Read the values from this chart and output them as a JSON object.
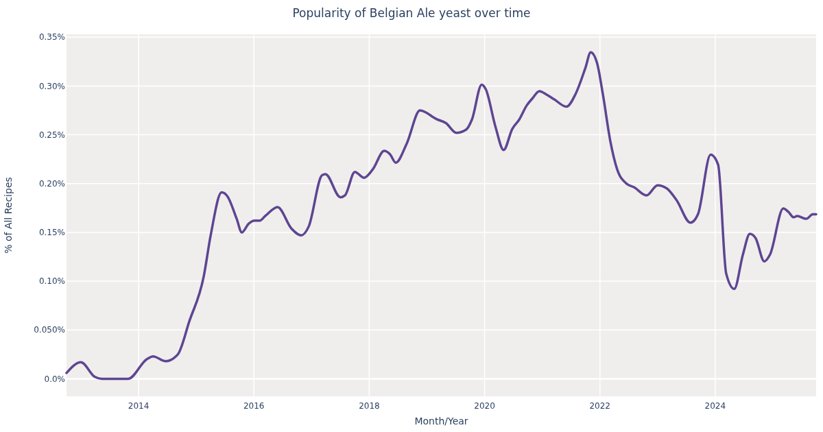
{
  "chart_data": {
    "type": "line",
    "title": "Popularity of Belgian Ale yeast over time",
    "xlabel": "Month/Year",
    "ylabel": "% of All Recipes",
    "xlim": [
      2012.75,
      2025.75
    ],
    "xticks": [
      2014,
      2016,
      2018,
      2020,
      2022,
      2024
    ],
    "ylim": [
      -0.018,
      0.353
    ],
    "yticks": [
      {
        "value": 0,
        "label": "0.0%"
      },
      {
        "value": 0.05,
        "label": "0.050%"
      },
      {
        "value": 0.1,
        "label": "0.10%"
      },
      {
        "value": 0.15,
        "label": "0.15%"
      },
      {
        "value": 0.2,
        "label": "0.20%"
      },
      {
        "value": 0.25,
        "label": "0.25%"
      },
      {
        "value": 0.3,
        "label": "0.30%"
      },
      {
        "value": 0.35,
        "label": "0.35%"
      }
    ],
    "grid": true,
    "line_style": "solid",
    "series": [
      {
        "color": "#5e4592",
        "x": [
          2012.75,
          2013.0,
          2013.24,
          2013.36,
          2013.82,
          2014.14,
          2014.25,
          2014.47,
          2014.68,
          2014.88,
          2015.13,
          2015.25,
          2015.44,
          2015.54,
          2015.7,
          2015.79,
          2015.91,
          2016.01,
          2016.1,
          2016.2,
          2016.41,
          2016.65,
          2016.82,
          2016.95,
          2017.18,
          2017.24,
          2017.5,
          2017.58,
          2017.75,
          2017.91,
          2018.06,
          2018.26,
          2018.36,
          2018.46,
          2018.65,
          2018.88,
          2019.17,
          2019.33,
          2019.51,
          2019.68,
          2019.78,
          2019.95,
          2020.02,
          2020.19,
          2020.33,
          2020.48,
          2020.6,
          2020.73,
          2020.83,
          2020.95,
          2021.07,
          2021.21,
          2021.42,
          2021.58,
          2021.75,
          2021.84,
          2021.95,
          2022.05,
          2022.18,
          2022.3,
          2022.46,
          2022.59,
          2022.81,
          2023.0,
          2023.16,
          2023.33,
          2023.57,
          2023.7,
          2023.92,
          2024.05,
          2024.19,
          2024.33,
          2024.48,
          2024.6,
          2024.7,
          2024.85,
          2024.95,
          2025.18,
          2025.27,
          2025.36,
          2025.42,
          2025.58,
          2025.69,
          2025.75
        ],
        "values": [
          0.006,
          0.017,
          0.002,
          0.0,
          0.0,
          0.02,
          0.023,
          0.018,
          0.025,
          0.059,
          0.105,
          0.147,
          0.191,
          0.187,
          0.164,
          0.15,
          0.159,
          0.162,
          0.162,
          0.167,
          0.176,
          0.154,
          0.147,
          0.156,
          0.2085,
          0.2097,
          0.186,
          0.188,
          0.212,
          0.206,
          0.2145,
          0.2335,
          0.23,
          0.2215,
          0.241,
          0.275,
          0.266,
          0.262,
          0.252,
          0.2553,
          0.2655,
          0.3014,
          0.2968,
          0.258,
          0.2345,
          0.256,
          0.2655,
          0.28,
          0.2873,
          0.2947,
          0.2914,
          0.2862,
          0.2788,
          0.2921,
          0.3188,
          0.3346,
          0.3237,
          0.2921,
          0.2437,
          0.2145,
          0.2,
          0.1963,
          0.1879,
          0.1983,
          0.1951,
          0.183,
          0.16,
          0.1685,
          0.2296,
          0.2194,
          0.1079,
          0.0921,
          0.1273,
          0.1486,
          0.1442,
          0.1203,
          0.1273,
          0.1745,
          0.1709,
          0.1655,
          0.1668,
          0.1639,
          0.1685,
          0.1685
        ]
      }
    ]
  }
}
